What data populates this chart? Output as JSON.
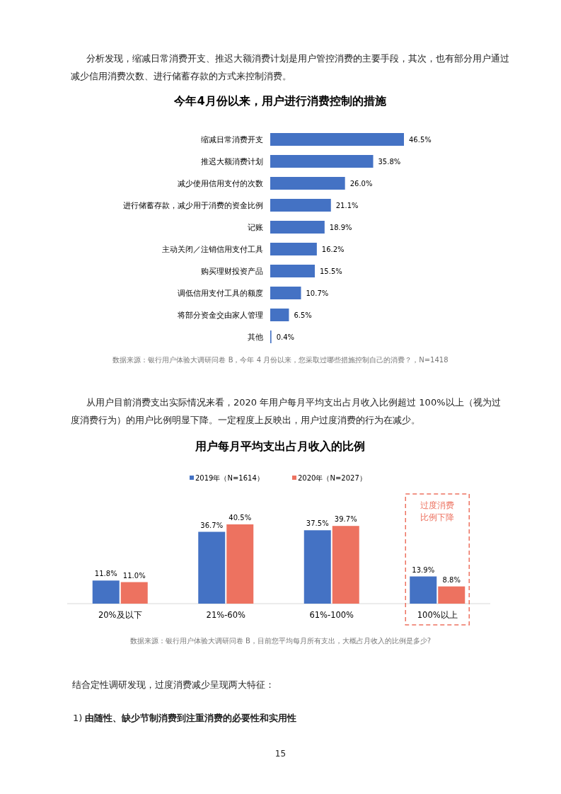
{
  "chart_data": [
    {
      "type": "bar",
      "orientation": "horizontal",
      "title": "今年4月份以来，用户进行消费控制的措施",
      "categories": [
        "缩减日常消费开支",
        "推迟大额消费计划",
        "减少使用信用支付的次数",
        "进行储蓄存款，减少用于消费的资金比例",
        "记账",
        "主动关闭／注销信用支付工具",
        "购买理财投资产品",
        "调低信用支付工具的额度",
        "将部分资金交由家人管理",
        "其他"
      ],
      "values": [
        46.5,
        35.8,
        26.0,
        21.1,
        18.9,
        16.2,
        15.5,
        10.7,
        6.5,
        0.4
      ],
      "value_labels": [
        "46.5%",
        "35.8%",
        "26.0%",
        "21.1%",
        "18.9%",
        "16.2%",
        "15.5%",
        "10.7%",
        "6.5%",
        "0.4%"
      ],
      "color": "#4472c4",
      "annotations": [
        "分析发现，缩减日常消费开支、推迟大额消费计划是用户管控消费的主要手段，其次，也有部分用户通过减少信用消费次数、进行储蓄存款的方式来控制消费。",
        "数据来源：银行用户体验大调研问卷 B，今年 4 月份以来，您采取过哪些措施控制自己的消费？，N=1418"
      ]
    },
    {
      "type": "bar",
      "title": "用户每月平均支出占月收入的比例",
      "categories": [
        "20%及以下",
        "21%-60%",
        "61%-100%",
        "100%以上"
      ],
      "series": [
        {
          "name": "2019年（N=1614）",
          "color": "#4472c4",
          "values": [
            11.8,
            36.7,
            37.5,
            13.9
          ],
          "value_labels": [
            "11.8%",
            "36.7%",
            "37.5%",
            "13.9%"
          ]
        },
        {
          "name": "2020年（N=2027）",
          "color": "#ed7260",
          "values": [
            11.0,
            40.5,
            39.7,
            8.8
          ],
          "value_labels": [
            "11.0%",
            "40.5%",
            "39.7%",
            "8.8%"
          ]
        }
      ],
      "legend": "top",
      "annotations": [
        "从用户目前消费支出实际情况来看，2020 年用户每月平均支出占月收入比例超过 100%以上（视为过度消费行为）的用户比例明显下降。一定程度上反映出，用户过度消费的行为在减少。",
        "数据来源：银行用户体验大调研问卷 B，目前您平均每月所有支出，大概占月收入的比例是多少?",
        "过度消费比例下降",
        "结合定性调研发现，过度消费减少呈现两大特征：",
        "1)    **由随性、缺少节制消费到注重消费的必要性和实用性**",
        "15"
      ]
    }
  ]
}
